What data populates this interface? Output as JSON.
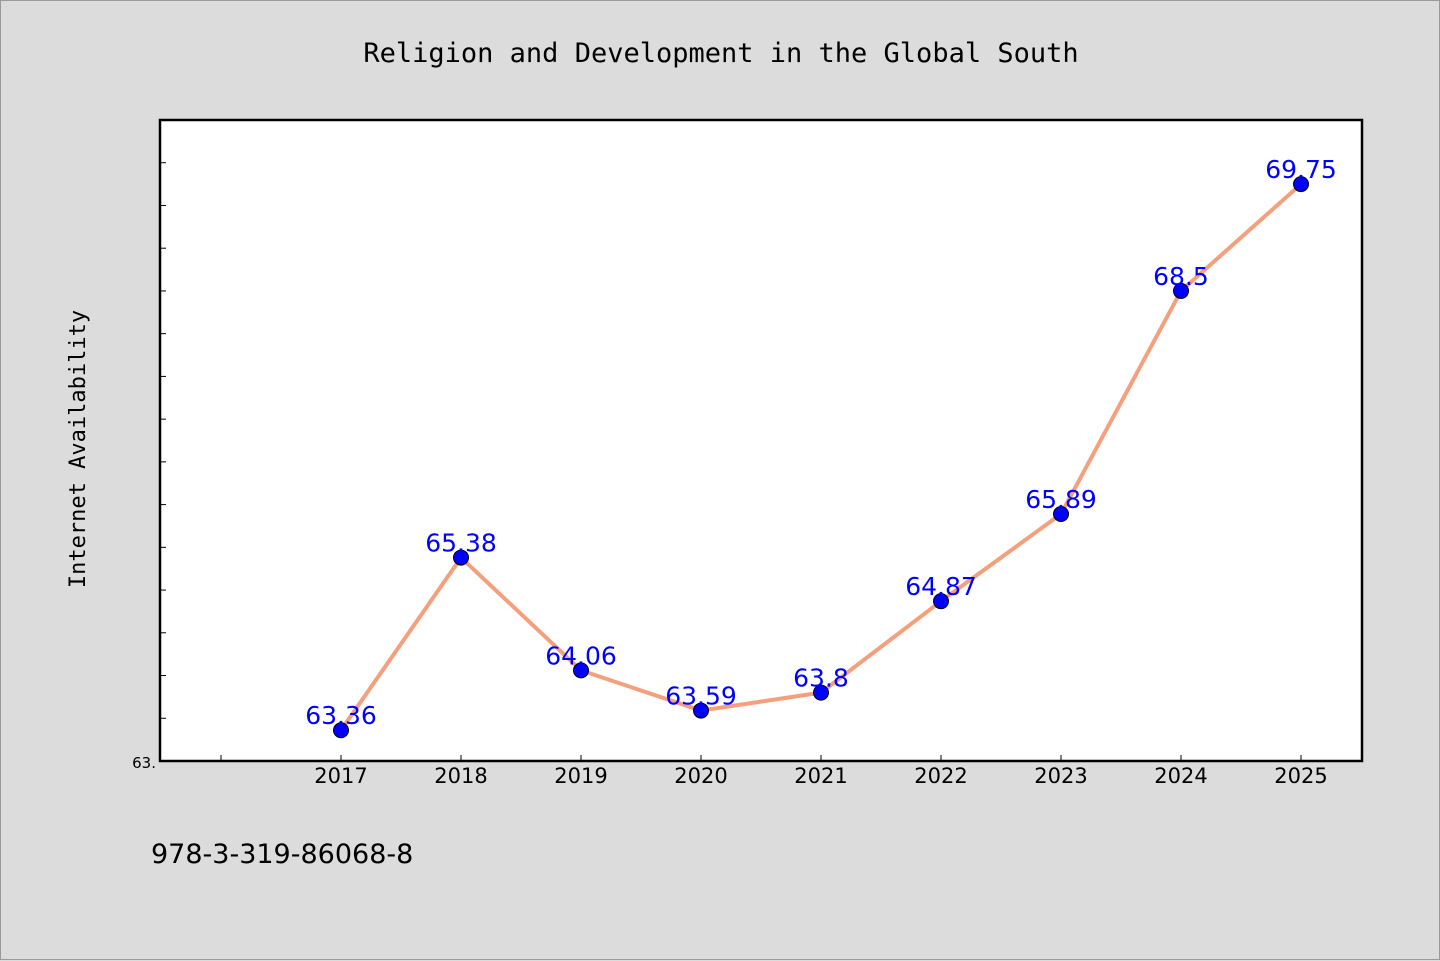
{
  "footer_text": "978-3-319-86068-8",
  "colors": {
    "background": "#dcdcdc",
    "plot_background": "#ffffff",
    "line": "#f4a07c",
    "marker": "#0000ff",
    "label": "#0000ff"
  },
  "chart_data": {
    "type": "line",
    "title": "Religion and Development in the Global South",
    "xlabel": "",
    "ylabel": "Internet Availability",
    "categories": [
      "2017",
      "2018",
      "2019",
      "2020",
      "2021",
      "2022",
      "2023",
      "2024",
      "2025"
    ],
    "series": [
      {
        "values": [
          63.36,
          65.38,
          64.06,
          63.59,
          63.8,
          64.87,
          65.89,
          68.5,
          69.75
        ],
        "labels": [
          "63.36",
          "65.38",
          "64.06",
          "63.59",
          "63.8",
          "64.87",
          "65.89",
          "68.5",
          "69.75"
        ]
      }
    ],
    "ylim": [
      63.0,
      70.5
    ],
    "y_tick_label": "63.",
    "y_minor_step": 0.5,
    "grid": false,
    "legend": "none"
  }
}
